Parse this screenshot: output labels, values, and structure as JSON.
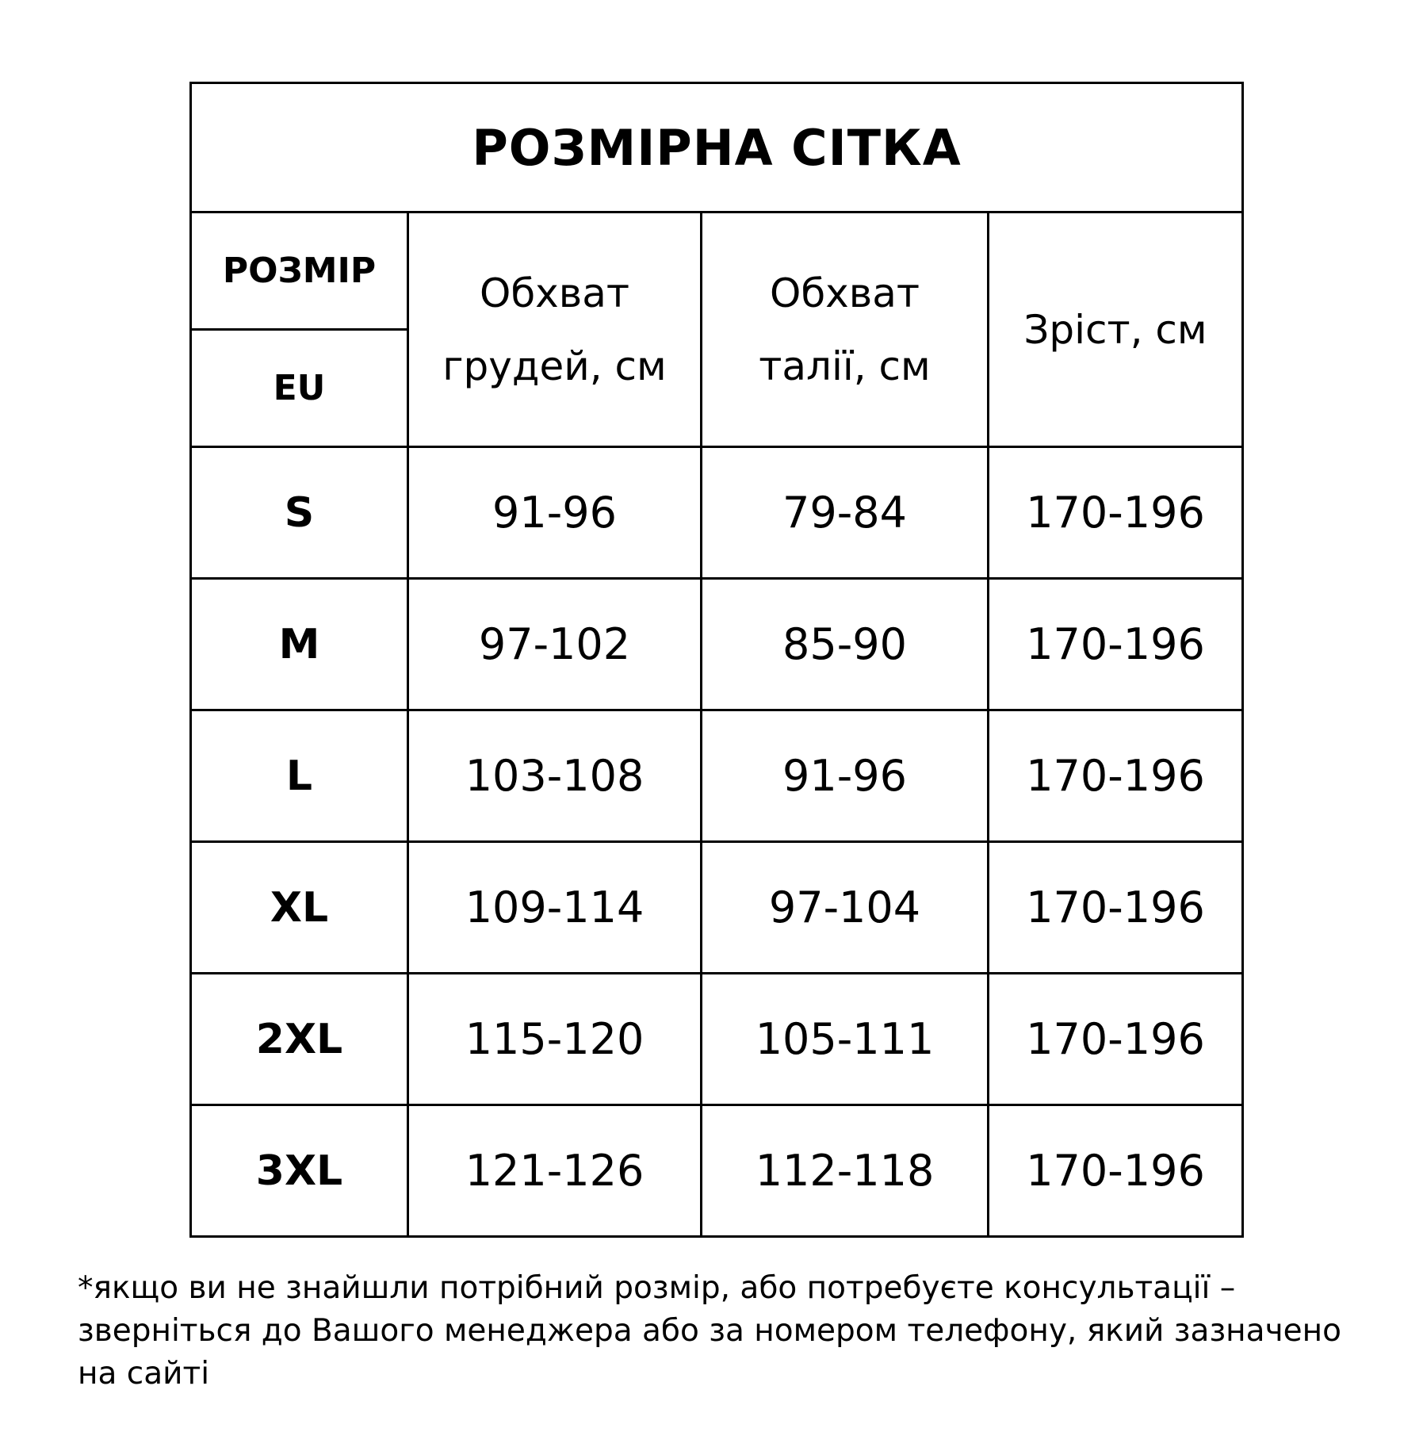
{
  "title": "РОЗМІРНА СІТКА",
  "headers": {
    "size": "РОЗМІР",
    "size_system": "EU",
    "chest": [
      "Обхват",
      "грудей, см"
    ],
    "waist": [
      "Обхват",
      "талії, см"
    ],
    "height": "Зріст, см"
  },
  "rows": [
    {
      "size": "S",
      "chest": "91-96",
      "waist": "79-84",
      "height": "170-196"
    },
    {
      "size": "M",
      "chest": "97-102",
      "waist": "85-90",
      "height": "170-196"
    },
    {
      "size": "L",
      "chest": "103-108",
      "waist": "91-96",
      "height": "170-196"
    },
    {
      "size": "XL",
      "chest": "109-114",
      "waist": "97-104",
      "height": "170-196"
    },
    {
      "size": "2XL",
      "chest": "115-120",
      "waist": "105-111",
      "height": "170-196"
    },
    {
      "size": "3XL",
      "chest": "121-126",
      "waist": "112-118",
      "height": "170-196"
    }
  ],
  "footnote": "*якщо ви не знайшли потрібний розмір, або потребуєте консультації – зверніться до Вашого менеджера або за номером телефону, який зазначено на сайті"
}
